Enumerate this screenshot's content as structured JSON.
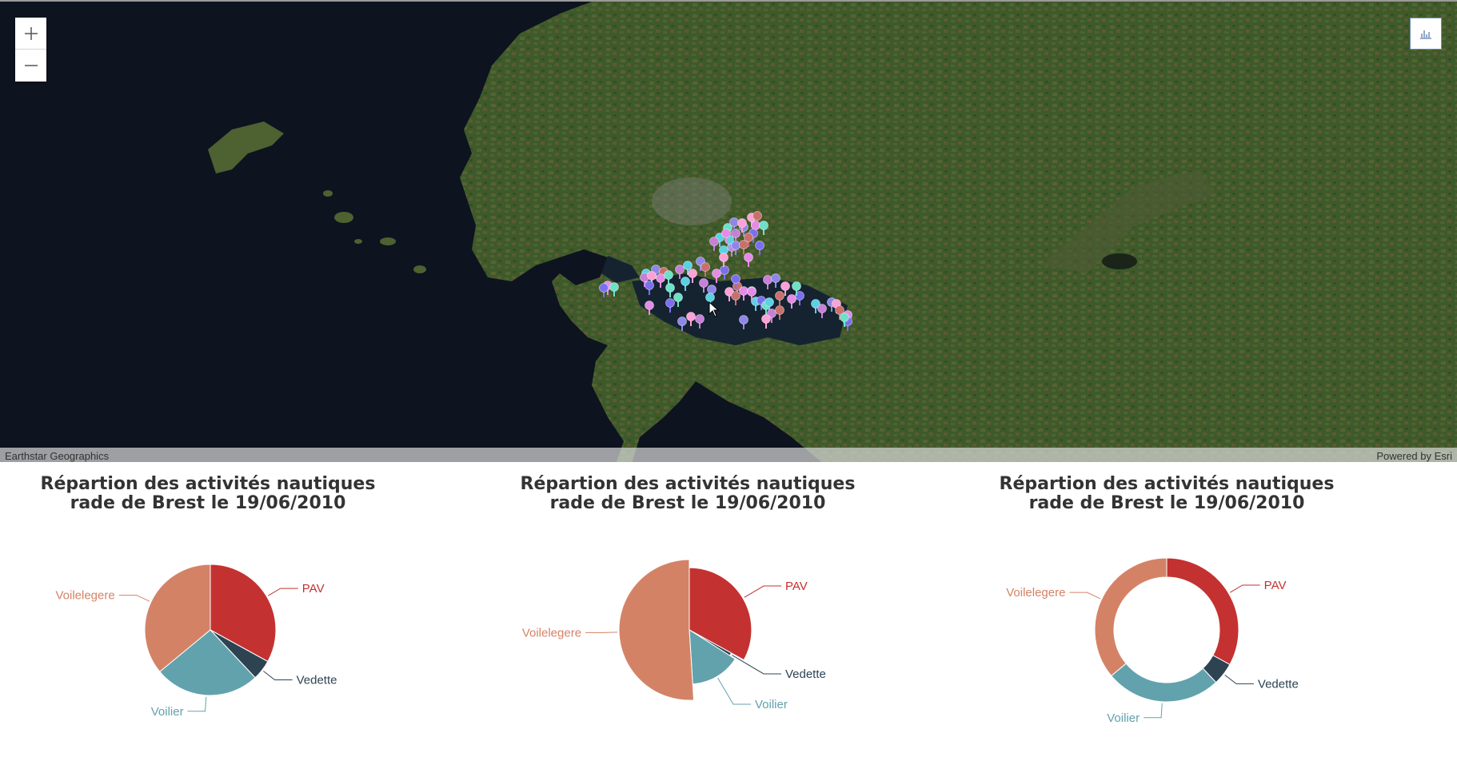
{
  "map": {
    "zoom_in_label": "+",
    "zoom_out_label": "–",
    "attribution_left": "Earthstar Geographics",
    "attribution_right": "Powered by Esri",
    "chart_toggle_icon": "bar-chart-icon",
    "marker_colors": [
      "#e58be6",
      "#7b6ff0",
      "#6ee0c8",
      "#5bd1e3",
      "#c77fd8",
      "#8e87e8",
      "#ffa0d8",
      "#c9706c"
    ]
  },
  "colors": {
    "PAV": "#c33231",
    "Vedette": "#2e4352",
    "Voilier": "#62a2ad",
    "Voilelegere": "#d48266"
  },
  "chart_data": [
    {
      "type": "pie",
      "title_line1": "Répartion des activités nautiques",
      "title_line2": "rade de Brest le 19/06/2010",
      "variant": "pie",
      "slices": [
        {
          "name": "PAV",
          "value": 33
        },
        {
          "name": "Vedette",
          "value": 5
        },
        {
          "name": "Voilier",
          "value": 26
        },
        {
          "name": "Voilelegere",
          "value": 36
        }
      ]
    },
    {
      "type": "pie",
      "title_line1": "Répartion des activités nautiques",
      "title_line2": "rade de Brest le 19/06/2010",
      "variant": "rose",
      "slices": [
        {
          "name": "PAV",
          "value": 33
        },
        {
          "name": "Vedette",
          "value": 1
        },
        {
          "name": "Voilier",
          "value": 15
        },
        {
          "name": "Voilelegere",
          "value": 51
        }
      ]
    },
    {
      "type": "pie",
      "title_line1": "Répartion des activités nautiques",
      "title_line2": "rade de Brest le 19/06/2010",
      "variant": "donut",
      "slices": [
        {
          "name": "PAV",
          "value": 33
        },
        {
          "name": "Vedette",
          "value": 5
        },
        {
          "name": "Voilier",
          "value": 26
        },
        {
          "name": "Voilelegere",
          "value": 36
        }
      ]
    }
  ]
}
